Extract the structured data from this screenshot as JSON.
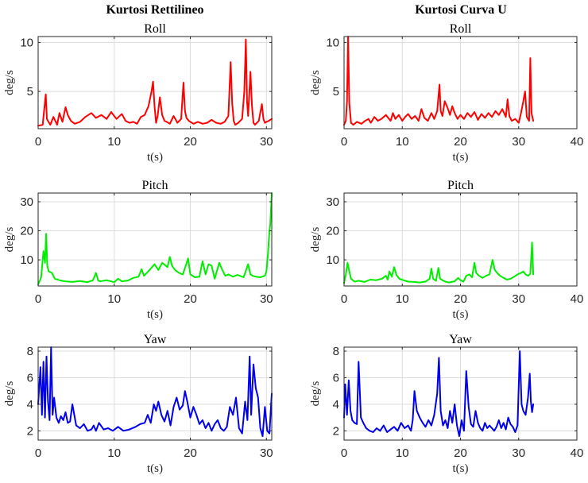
{
  "figure": {
    "left_title": "Kurtosi Rettilineo",
    "right_title": "Kurtosi Curva U"
  },
  "chart_data": [
    {
      "type": "line",
      "title": "Roll",
      "xlabel": "t(s)",
      "ylabel": "deg/s",
      "color": "#ff0000",
      "xlim": [
        0,
        30.7
      ],
      "ylim": [
        1.2,
        10.6
      ],
      "xticks": [
        0,
        10,
        20,
        30
      ],
      "yticks": [
        5,
        10
      ],
      "grid": true,
      "series": [
        {
          "x": [
            0,
            0.6,
            0.85,
            1.0,
            1.15,
            1.6,
            2.0,
            2.5,
            2.8,
            3.2,
            3.6,
            3.9,
            4.3,
            4.8,
            5.5,
            6.2,
            7.0,
            7.6,
            8.3,
            9.0,
            9.6,
            10.3,
            11.0,
            11.5,
            12.0,
            12.5,
            13.0,
            13.5,
            14.0,
            14.5,
            14.9,
            15.1,
            15.3,
            15.5,
            15.7,
            16.0,
            16.3,
            16.6,
            16.9,
            17.3,
            17.8,
            18.3,
            18.8,
            19.1,
            19.3,
            19.5,
            19.8,
            20.4,
            21.0,
            21.6,
            22.2,
            22.8,
            23.4,
            24.0,
            24.5,
            25.0,
            25.3,
            25.5,
            25.7,
            25.9,
            26.3,
            26.8,
            27.1,
            27.3,
            27.45,
            27.6,
            27.9,
            28.1,
            28.3,
            28.5,
            29.0,
            29.4,
            29.6,
            29.8,
            30.0,
            30.3,
            30.7
          ],
          "y": [
            1.5,
            1.6,
            3.5,
            4.7,
            2.2,
            1.6,
            2.4,
            1.6,
            2.8,
            1.9,
            3.4,
            2.6,
            2.0,
            1.7,
            1.9,
            2.4,
            2.8,
            2.3,
            2.6,
            2.2,
            2.9,
            2.2,
            2.7,
            2.0,
            1.8,
            1.9,
            1.7,
            2.4,
            2.6,
            3.5,
            5.0,
            6.0,
            3.5,
            1.8,
            2.5,
            4.4,
            2.6,
            2.0,
            1.9,
            1.7,
            2.5,
            1.8,
            2.2,
            5.9,
            3.0,
            2.3,
            2.0,
            1.7,
            1.9,
            1.7,
            1.8,
            2.1,
            1.8,
            1.7,
            1.9,
            2.5,
            8.0,
            3.8,
            2.0,
            1.6,
            1.8,
            2.2,
            5.0,
            10.3,
            4.0,
            2.5,
            7.0,
            3.5,
            1.8,
            1.6,
            2.0,
            3.7,
            2.2,
            1.8,
            1.9,
            2.0,
            2.2
          ]
        }
      ]
    },
    {
      "type": "line",
      "title": "Roll",
      "xlabel": "t(s)",
      "ylabel": "deg/s",
      "color": "#ff0000",
      "xlim": [
        0,
        40
      ],
      "ylim": [
        1.2,
        10.6
      ],
      "xticks": [
        0,
        10,
        20,
        30,
        40
      ],
      "yticks": [
        5,
        10
      ],
      "grid": true,
      "series": [
        {
          "x": [
            0,
            0.3,
            0.5,
            0.7,
            0.9,
            1.2,
            1.6,
            2.2,
            3.0,
            3.6,
            4.2,
            4.6,
            5.2,
            5.8,
            6.4,
            7.2,
            8.0,
            8.4,
            8.8,
            9.4,
            10.0,
            10.5,
            11.0,
            11.6,
            12.2,
            12.8,
            13.3,
            13.8,
            14.4,
            15.0,
            15.5,
            16.0,
            16.4,
            16.6,
            16.9,
            17.3,
            17.8,
            18.2,
            18.6,
            19.0,
            19.5,
            20.0,
            20.6,
            21.2,
            21.8,
            22.4,
            23.0,
            23.6,
            24.2,
            24.8,
            25.4,
            26.0,
            26.6,
            27.2,
            27.8,
            28.1,
            28.4,
            28.8,
            29.4,
            30.0,
            30.4,
            30.8,
            31.1,
            31.4,
            31.8,
            32.0,
            32.2,
            32.5
          ],
          "y": [
            1.6,
            2.0,
            4.0,
            10.6,
            3.8,
            1.8,
            1.6,
            1.9,
            1.7,
            2.0,
            2.2,
            1.8,
            2.4,
            2.0,
            2.2,
            2.6,
            2.0,
            2.8,
            2.2,
            2.6,
            2.0,
            2.4,
            2.7,
            2.2,
            2.5,
            2.0,
            3.2,
            2.3,
            2.0,
            2.8,
            2.2,
            3.0,
            5.7,
            3.0,
            2.5,
            4.0,
            3.3,
            2.6,
            3.5,
            2.8,
            2.2,
            2.6,
            2.2,
            2.8,
            2.4,
            2.9,
            2.1,
            2.7,
            2.3,
            2.8,
            2.4,
            3.0,
            2.6,
            3.2,
            2.4,
            4.2,
            2.5,
            2.0,
            2.2,
            1.8,
            2.8,
            4.0,
            5.0,
            2.4,
            2.0,
            8.4,
            2.8,
            2.0
          ]
        }
      ]
    },
    {
      "type": "line",
      "title": "Pitch",
      "xlabel": "t(s)",
      "ylabel": "deg/s",
      "color": "#00ee00",
      "xlim": [
        0,
        30.7
      ],
      "ylim": [
        1,
        33
      ],
      "xticks": [
        0,
        10,
        20,
        30
      ],
      "yticks": [
        10,
        20,
        30
      ],
      "grid": true,
      "series": [
        {
          "x": [
            0,
            0.4,
            0.7,
            0.9,
            1.05,
            1.2,
            1.4,
            1.8,
            2.2,
            2.8,
            3.5,
            4.5,
            5.5,
            6.5,
            7.2,
            7.6,
            7.9,
            8.2,
            9.0,
            10.0,
            10.5,
            11.0,
            11.8,
            12.5,
            13.2,
            13.6,
            13.9,
            14.3,
            14.8,
            15.3,
            15.8,
            16.3,
            17.0,
            17.3,
            17.6,
            18.0,
            18.5,
            19.0,
            19.4,
            19.7,
            20.0,
            20.6,
            21.2,
            21.6,
            22.0,
            22.4,
            22.8,
            23.2,
            23.8,
            24.2,
            24.6,
            25.0,
            25.6,
            26.2,
            27.0,
            27.6,
            27.9,
            28.2,
            28.6,
            29.2,
            29.8,
            30.0,
            30.2,
            30.4,
            30.5,
            30.7
          ],
          "y": [
            1.5,
            4.0,
            13.0,
            9.0,
            19.0,
            8.0,
            6.0,
            5.5,
            3.5,
            3.0,
            2.6,
            2.4,
            2.7,
            2.3,
            3.0,
            5.5,
            2.8,
            2.6,
            3.0,
            2.3,
            3.5,
            2.6,
            2.9,
            3.8,
            4.2,
            6.8,
            4.5,
            5.5,
            7.0,
            8.5,
            6.5,
            9.0,
            7.5,
            11.0,
            8.0,
            6.5,
            5.5,
            5.0,
            8.0,
            10.5,
            5.0,
            4.0,
            4.2,
            9.5,
            5.0,
            8.5,
            8.0,
            3.5,
            9.0,
            6.5,
            4.5,
            5.0,
            4.2,
            4.8,
            4.0,
            8.5,
            5.0,
            4.5,
            4.2,
            4.0,
            4.5,
            6.0,
            12.0,
            20.0,
            22.0,
            33.0
          ]
        }
      ]
    },
    {
      "type": "line",
      "title": "Pitch",
      "xlabel": "t(s)",
      "ylabel": "deg/s",
      "color": "#00ee00",
      "xlim": [
        0,
        40
      ],
      "ylim": [
        1,
        33
      ],
      "xticks": [
        0,
        10,
        20,
        30,
        40
      ],
      "yticks": [
        10,
        20,
        30
      ],
      "grid": true,
      "series": [
        {
          "x": [
            0,
            0.3,
            0.6,
            0.9,
            1.2,
            1.8,
            2.5,
            3.5,
            4.5,
            5.5,
            6.5,
            7.2,
            7.5,
            7.8,
            8.2,
            8.6,
            9.0,
            9.5,
            10.2,
            11.0,
            12.0,
            13.0,
            14.0,
            14.7,
            15.0,
            15.3,
            15.8,
            16.2,
            16.5,
            16.9,
            17.4,
            18.0,
            19.0,
            19.6,
            20.0,
            20.5,
            21.0,
            21.5,
            22.0,
            22.4,
            22.7,
            23.2,
            23.8,
            24.4,
            25.0,
            25.5,
            25.9,
            26.3,
            26.8,
            27.4,
            28.0,
            28.6,
            29.2,
            29.8,
            30.4,
            30.8,
            31.2,
            31.6,
            32.0,
            32.3,
            32.5
          ],
          "y": [
            2.0,
            5.0,
            9.0,
            6.0,
            3.5,
            2.5,
            2.8,
            2.4,
            3.2,
            3.0,
            3.5,
            4.5,
            3.2,
            6.0,
            4.2,
            7.5,
            4.8,
            3.5,
            3.0,
            2.5,
            2.4,
            2.2,
            2.5,
            3.5,
            7.0,
            3.5,
            2.8,
            7.2,
            3.5,
            3.0,
            2.5,
            2.2,
            2.6,
            3.8,
            3.0,
            2.5,
            4.5,
            5.0,
            4.0,
            9.0,
            5.5,
            4.5,
            3.8,
            4.5,
            5.0,
            10.0,
            6.5,
            5.5,
            4.5,
            3.8,
            3.2,
            3.5,
            4.2,
            5.0,
            5.5,
            6.0,
            5.0,
            4.5,
            5.2,
            16.0,
            5.0
          ]
        }
      ]
    },
    {
      "type": "line",
      "title": "Yaw",
      "xlabel": "t(s)",
      "ylabel": "deg/s",
      "color": "#0000ee",
      "xlim": [
        0,
        30.7
      ],
      "ylim": [
        1.3,
        8.3
      ],
      "xticks": [
        0,
        10,
        20,
        30
      ],
      "yticks": [
        2,
        4,
        6,
        8
      ],
      "grid": true,
      "series": [
        {
          "x": [
            0,
            0.3,
            0.5,
            0.7,
            0.9,
            1.1,
            1.3,
            1.5,
            1.7,
            1.9,
            2.1,
            2.4,
            2.7,
            3.0,
            3.3,
            3.6,
            3.9,
            4.2,
            4.5,
            5.0,
            5.5,
            6.0,
            6.5,
            7.0,
            7.3,
            7.6,
            8.0,
            8.6,
            9.2,
            9.8,
            10.5,
            11.2,
            12.0,
            12.8,
            13.4,
            14.0,
            14.4,
            14.8,
            15.2,
            15.5,
            15.8,
            16.2,
            16.6,
            17.0,
            17.4,
            17.8,
            18.2,
            18.6,
            19.0,
            19.3,
            19.6,
            20.0,
            20.4,
            20.8,
            21.2,
            21.6,
            22.0,
            22.4,
            22.8,
            23.2,
            23.6,
            24.0,
            24.4,
            24.8,
            25.2,
            25.6,
            26.0,
            26.4,
            26.8,
            27.2,
            27.5,
            27.8,
            28.0,
            28.3,
            28.6,
            28.9,
            29.2,
            29.5,
            29.8,
            30.1,
            30.4,
            30.7
          ],
          "y": [
            4.0,
            6.8,
            3.2,
            7.2,
            3.0,
            7.6,
            4.2,
            2.8,
            8.3,
            3.2,
            4.5,
            3.0,
            2.6,
            3.1,
            2.8,
            3.4,
            2.6,
            2.7,
            4.0,
            2.4,
            2.2,
            2.5,
            2.0,
            2.1,
            2.4,
            2.0,
            2.6,
            2.1,
            2.2,
            2.0,
            2.3,
            2.0,
            2.1,
            2.3,
            2.5,
            2.6,
            3.2,
            2.6,
            4.0,
            3.5,
            4.2,
            3.2,
            2.7,
            3.5,
            2.4,
            3.8,
            4.5,
            3.6,
            3.9,
            5.0,
            4.2,
            3.0,
            3.8,
            3.2,
            2.5,
            2.8,
            2.2,
            2.6,
            2.0,
            2.5,
            2.8,
            2.2,
            2.0,
            2.3,
            3.8,
            3.2,
            4.5,
            2.2,
            1.8,
            4.2,
            2.8,
            7.6,
            3.2,
            7.0,
            5.2,
            4.5,
            2.2,
            1.6,
            3.8,
            2.0,
            1.8,
            4.8
          ]
        }
      ]
    },
    {
      "type": "line",
      "title": "Yaw",
      "xlabel": "t(s)",
      "ylabel": "deg/s",
      "color": "#0000ee",
      "xlim": [
        0,
        40
      ],
      "ylim": [
        1.3,
        8.3
      ],
      "xticks": [
        0,
        10,
        20,
        30,
        40
      ],
      "yticks": [
        2,
        4,
        6,
        8
      ],
      "grid": true,
      "series": [
        {
          "x": [
            0,
            0.2,
            0.5,
            0.8,
            1.1,
            1.4,
            1.8,
            2.2,
            2.5,
            2.9,
            3.3,
            3.8,
            4.4,
            5.0,
            5.6,
            6.2,
            6.8,
            7.4,
            8.0,
            8.6,
            9.2,
            9.8,
            10.4,
            11.0,
            11.5,
            11.8,
            12.1,
            12.5,
            13.0,
            13.5,
            14.0,
            14.5,
            15.0,
            15.5,
            16.0,
            16.3,
            16.6,
            17.0,
            17.4,
            17.8,
            18.2,
            18.6,
            19.0,
            19.4,
            19.8,
            20.2,
            20.6,
            21.0,
            21.4,
            21.8,
            22.2,
            22.6,
            23.0,
            23.4,
            23.8,
            24.2,
            24.6,
            25.0,
            25.4,
            25.8,
            26.2,
            26.6,
            27.0,
            27.4,
            27.8,
            28.2,
            28.6,
            29.0,
            29.4,
            29.8,
            30.2,
            30.5,
            30.8,
            31.2,
            31.6,
            31.9,
            32.1,
            32.3,
            32.5
          ],
          "y": [
            3.0,
            5.5,
            3.2,
            5.8,
            3.5,
            2.8,
            2.6,
            2.5,
            7.2,
            3.0,
            2.6,
            2.2,
            2.0,
            1.9,
            2.2,
            2.0,
            2.4,
            1.9,
            2.1,
            2.3,
            2.0,
            2.6,
            2.2,
            2.4,
            2.0,
            2.8,
            5.0,
            3.5,
            3.0,
            2.6,
            2.3,
            2.8,
            2.4,
            3.2,
            4.8,
            7.5,
            3.5,
            2.4,
            2.8,
            2.2,
            3.5,
            2.6,
            4.0,
            2.4,
            1.6,
            2.8,
            2.0,
            6.5,
            3.8,
            2.5,
            2.3,
            3.5,
            2.6,
            2.2,
            2.0,
            2.6,
            2.2,
            2.4,
            2.2,
            2.0,
            2.3,
            2.8,
            2.2,
            2.6,
            2.1,
            3.0,
            2.5,
            2.3,
            1.9,
            2.4,
            8.0,
            4.0,
            3.5,
            3.2,
            4.5,
            6.3,
            4.2,
            3.4,
            4.0
          ]
        }
      ]
    }
  ]
}
